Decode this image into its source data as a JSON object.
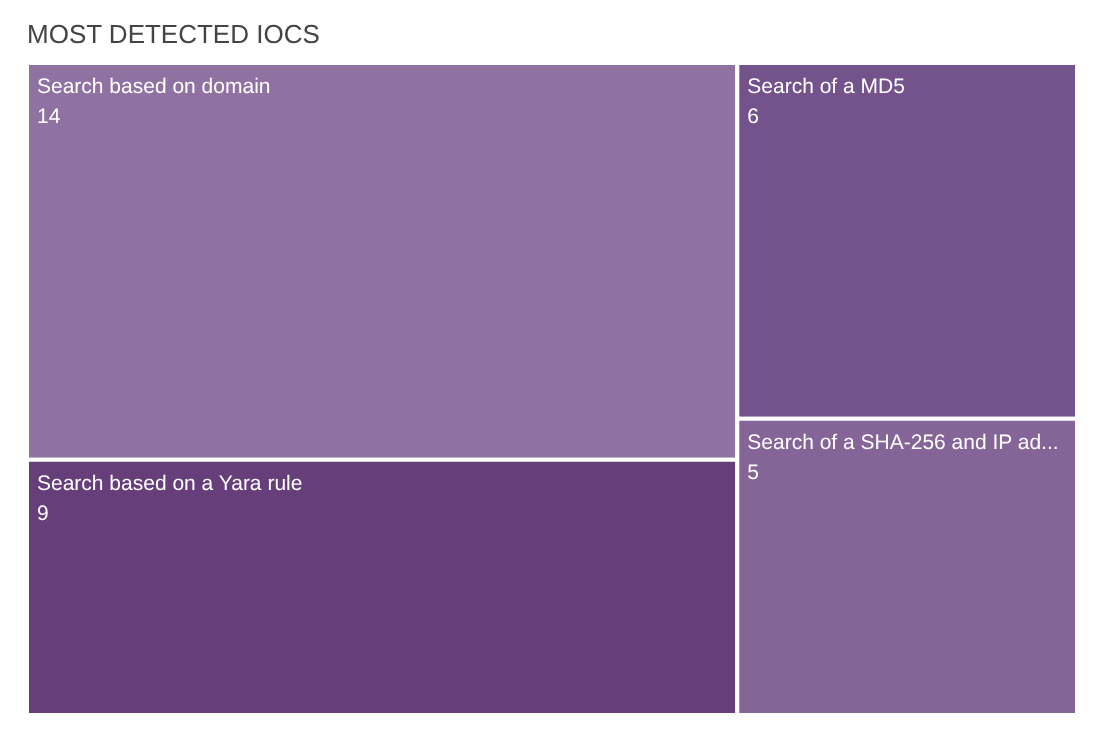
{
  "chart_data": {
    "type": "other",
    "title": "MOST DETECTED IOCS",
    "categories": [
      "Search based on domain",
      "Search based on a Yara rule",
      "Search of a MD5",
      "Search of a SHA-256 and IP ad..."
    ],
    "values": [
      14,
      9,
      6,
      5
    ],
    "colors": [
      "#8f72a2",
      "#653e7a",
      "#74538c",
      "#856498"
    ],
    "data_labels": true
  }
}
